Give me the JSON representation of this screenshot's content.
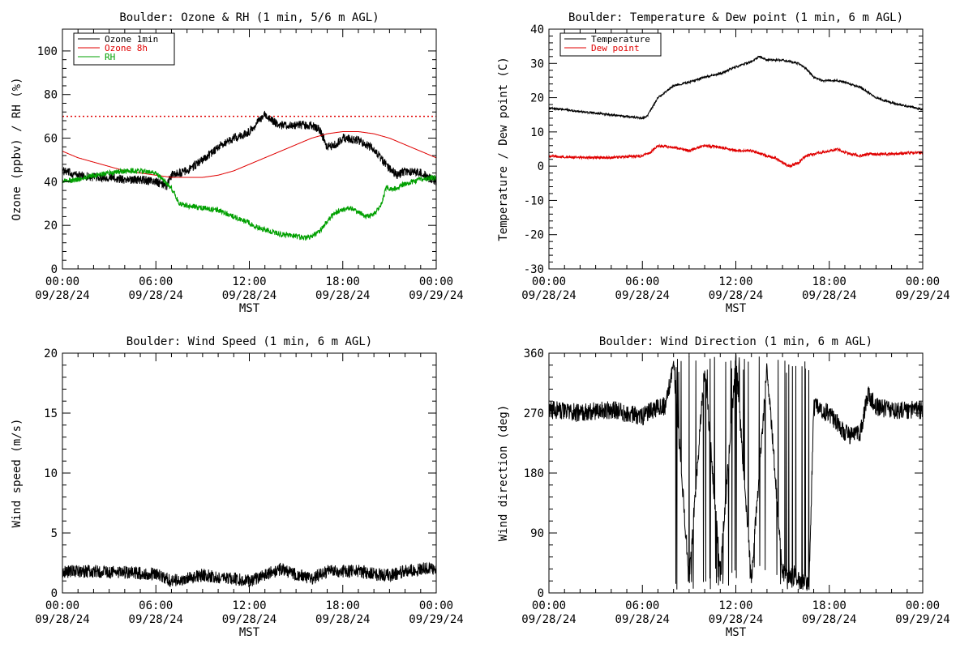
{
  "figure": {
    "background": "#ffffff",
    "x_tick_labels": [
      {
        "time": "00:00",
        "date": "09/28/24"
      },
      {
        "time": "06:00",
        "date": "09/28/24"
      },
      {
        "time": "12:00",
        "date": "09/28/24"
      },
      {
        "time": "18:00",
        "date": "09/28/24"
      },
      {
        "time": "00:00",
        "date": "09/29/24"
      }
    ],
    "xlabel": "MST"
  },
  "chart_data": [
    {
      "id": "ozone-rh",
      "type": "line",
      "title": "Boulder: Ozone & RH (1 min, 5/6 m AGL)",
      "ylabel": "Ozone (ppbv) / RH (%)",
      "xlim": [
        0,
        24
      ],
      "ylim": [
        0,
        110
      ],
      "yticks": [
        0,
        20,
        40,
        60,
        80,
        100
      ],
      "grid": false,
      "legend": "top-left",
      "reference_lines": [
        {
          "y": 70,
          "color": "#e00000",
          "style": "dotted"
        }
      ],
      "series": [
        {
          "name": "Ozone 1min",
          "color": "#000000",
          "noise": 2.0,
          "x": [
            0,
            1,
            2,
            3,
            4,
            5,
            6,
            6.7,
            7,
            8,
            9,
            10,
            11,
            11.5,
            12,
            12.5,
            13,
            13.5,
            14,
            15,
            16,
            16.5,
            17,
            17.5,
            18,
            19,
            20,
            21,
            21.5,
            22,
            23,
            24
          ],
          "y": [
            45,
            43,
            42,
            42,
            41,
            41,
            40,
            38,
            43,
            45,
            50,
            56,
            60,
            61,
            63,
            67,
            71,
            68,
            66,
            66,
            66,
            64,
            56,
            57,
            60,
            59,
            55,
            46,
            43,
            45,
            44,
            40
          ]
        },
        {
          "name": "Ozone 8h",
          "color": "#e00000",
          "noise": 0,
          "x": [
            0,
            1,
            2,
            3,
            4,
            5,
            6,
            7,
            8,
            9,
            10,
            11,
            12,
            13,
            14,
            15,
            16,
            17,
            18,
            19,
            20,
            21,
            22,
            23,
            24
          ],
          "y": [
            54,
            51,
            49,
            47,
            45,
            44,
            43,
            42,
            42,
            42,
            43,
            45,
            48,
            51,
            54,
            57,
            60,
            62,
            63,
            63,
            62,
            60,
            57,
            54,
            51
          ]
        },
        {
          "name": "RH",
          "color": "#00a000",
          "noise": 1.2,
          "x": [
            0,
            1,
            2,
            3,
            4,
            5,
            6,
            7,
            7.5,
            8,
            9,
            10,
            11,
            12,
            12.5,
            13,
            14,
            15,
            15.5,
            16,
            16.5,
            17,
            17.5,
            18,
            18.5,
            19,
            19.5,
            20,
            20.5,
            20.8,
            21,
            22,
            23,
            24
          ],
          "y": [
            40,
            41,
            43,
            44,
            45,
            45,
            44,
            37,
            30,
            29,
            28,
            27,
            24,
            21,
            19,
            18,
            16,
            15,
            14,
            15,
            17,
            22,
            26,
            27,
            28,
            26,
            24,
            25,
            30,
            38,
            36,
            39,
            41,
            42
          ]
        }
      ]
    },
    {
      "id": "temp-dew",
      "type": "line",
      "title": "Boulder: Temperature & Dew point (1 min, 6 m AGL)",
      "ylabel": "Temperature / Dew point (C)",
      "xlim": [
        0,
        24
      ],
      "ylim": [
        -30,
        40
      ],
      "yticks": [
        -30,
        -20,
        -10,
        0,
        10,
        20,
        30,
        40
      ],
      "grid": false,
      "legend": "top-left",
      "series": [
        {
          "name": "Temperature",
          "color": "#000000",
          "noise": 0.3,
          "x": [
            0,
            1,
            2,
            3,
            4,
            5,
            6,
            6.3,
            7,
            8,
            9,
            10,
            11,
            12,
            13,
            13.5,
            14,
            15,
            16,
            16.5,
            17,
            17.5,
            18,
            18.5,
            19,
            20,
            21,
            22,
            23,
            24
          ],
          "y": [
            17,
            16.5,
            16,
            15.5,
            15,
            14.5,
            14,
            14.5,
            20,
            23.5,
            24.5,
            26,
            27,
            29,
            30.5,
            32,
            31,
            31,
            30,
            28.5,
            26,
            25,
            25,
            25,
            24.5,
            23,
            20,
            18.5,
            17.5,
            16.5
          ]
        },
        {
          "name": "Dew point",
          "color": "#e00000",
          "noise": 0.4,
          "x": [
            0,
            2,
            4,
            6,
            6.5,
            7,
            8,
            9,
            10,
            11,
            12,
            13,
            14,
            14.5,
            15,
            15.5,
            16,
            16.5,
            17,
            18,
            18.5,
            19,
            20,
            20.5,
            21,
            22,
            23,
            24
          ],
          "y": [
            3,
            2.5,
            2.5,
            3,
            4,
            6,
            5.5,
            4.5,
            6,
            5.5,
            4.5,
            4.5,
            3,
            2.5,
            1,
            0,
            1,
            3,
            3.5,
            4.5,
            5,
            4,
            3,
            3.5,
            3.5,
            3.5,
            3.8,
            4
          ]
        }
      ]
    },
    {
      "id": "wind-speed",
      "type": "line",
      "title": "Boulder: Wind Speed (1 min, 6 m AGL)",
      "ylabel": "Wind speed (m/s)",
      "xlim": [
        0,
        24
      ],
      "ylim": [
        0,
        20
      ],
      "yticks": [
        0,
        5,
        10,
        15,
        20
      ],
      "grid": false,
      "series": [
        {
          "color": "#000000",
          "noise": 0.55,
          "x": [
            0,
            2,
            4,
            6,
            7,
            8,
            9,
            10,
            11,
            12,
            13,
            14,
            14.5,
            15,
            16,
            17,
            18,
            19,
            20,
            21,
            22,
            23,
            24
          ],
          "y": [
            1.8,
            1.8,
            1.7,
            1.6,
            1.0,
            1.2,
            1.5,
            1.3,
            1.2,
            1.0,
            1.5,
            2.0,
            1.8,
            1.6,
            1.2,
            1.8,
            1.8,
            1.8,
            1.6,
            1.5,
            1.8,
            2.0,
            2.0
          ]
        }
      ]
    },
    {
      "id": "wind-dir",
      "type": "line",
      "title": "Boulder: Wind Direction (1 min, 6 m AGL)",
      "ylabel": "Wind direction (deg)",
      "xlim": [
        0,
        24
      ],
      "ylim": [
        0,
        360
      ],
      "yticks": [
        0,
        90,
        180,
        270,
        360
      ],
      "grid": false,
      "series": [
        {
          "color": "#000000",
          "noise": 14,
          "wrap_range": [
            8.0,
            16.7
          ],
          "x": [
            0,
            2,
            4,
            6,
            7,
            7.5,
            8,
            9,
            10,
            11,
            12,
            13,
            14,
            15,
            16,
            16.7,
            17,
            18,
            19,
            19.5,
            20,
            20.5,
            21,
            22,
            23,
            24
          ],
          "y": [
            275,
            270,
            275,
            265,
            280,
            280,
            345,
            20,
            340,
            30,
            350,
            20,
            340,
            30,
            20,
            10,
            280,
            270,
            240,
            235,
            240,
            300,
            280,
            275,
            275,
            275
          ]
        }
      ]
    }
  ]
}
